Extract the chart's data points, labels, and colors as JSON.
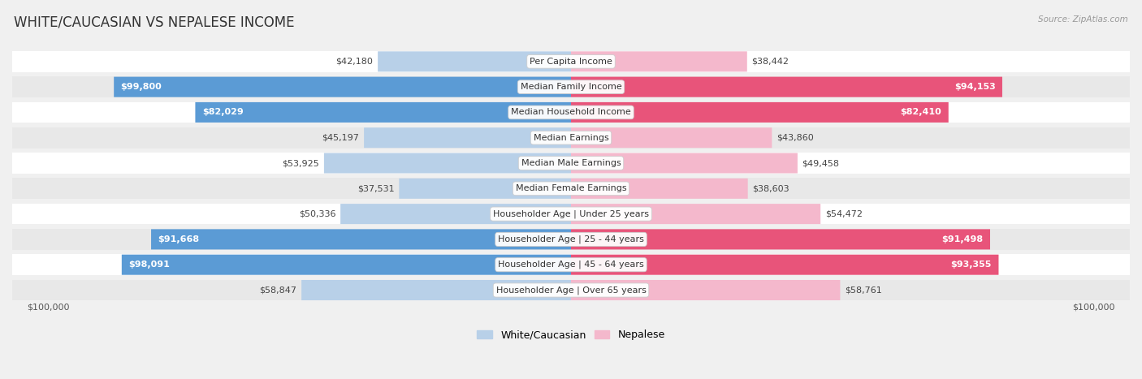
{
  "title": "WHITE/CAUCASIAN VS NEPALESE INCOME",
  "source": "Source: ZipAtlas.com",
  "categories": [
    "Per Capita Income",
    "Median Family Income",
    "Median Household Income",
    "Median Earnings",
    "Median Male Earnings",
    "Median Female Earnings",
    "Householder Age | Under 25 years",
    "Householder Age | 25 - 44 years",
    "Householder Age | 45 - 64 years",
    "Householder Age | Over 65 years"
  ],
  "white_values": [
    42180,
    99800,
    82029,
    45197,
    53925,
    37531,
    50336,
    91668,
    98091,
    58847
  ],
  "nepalese_values": [
    38442,
    94153,
    82410,
    43860,
    49458,
    38603,
    54472,
    91498,
    93355,
    58761
  ],
  "white_color_light": "#b8d0e8",
  "white_color_dark": "#5b9bd5",
  "nepalese_color_light": "#f4b8cc",
  "nepalese_color_dark": "#e8547a",
  "white_label": "White/Caucasian",
  "nepalese_label": "Nepalese",
  "max_value": 100000,
  "large_threshold": 75000,
  "title_fontsize": 12,
  "label_fontsize": 8,
  "value_fontsize": 8,
  "xlabel_left": "$100,000",
  "xlabel_right": "$100,000"
}
